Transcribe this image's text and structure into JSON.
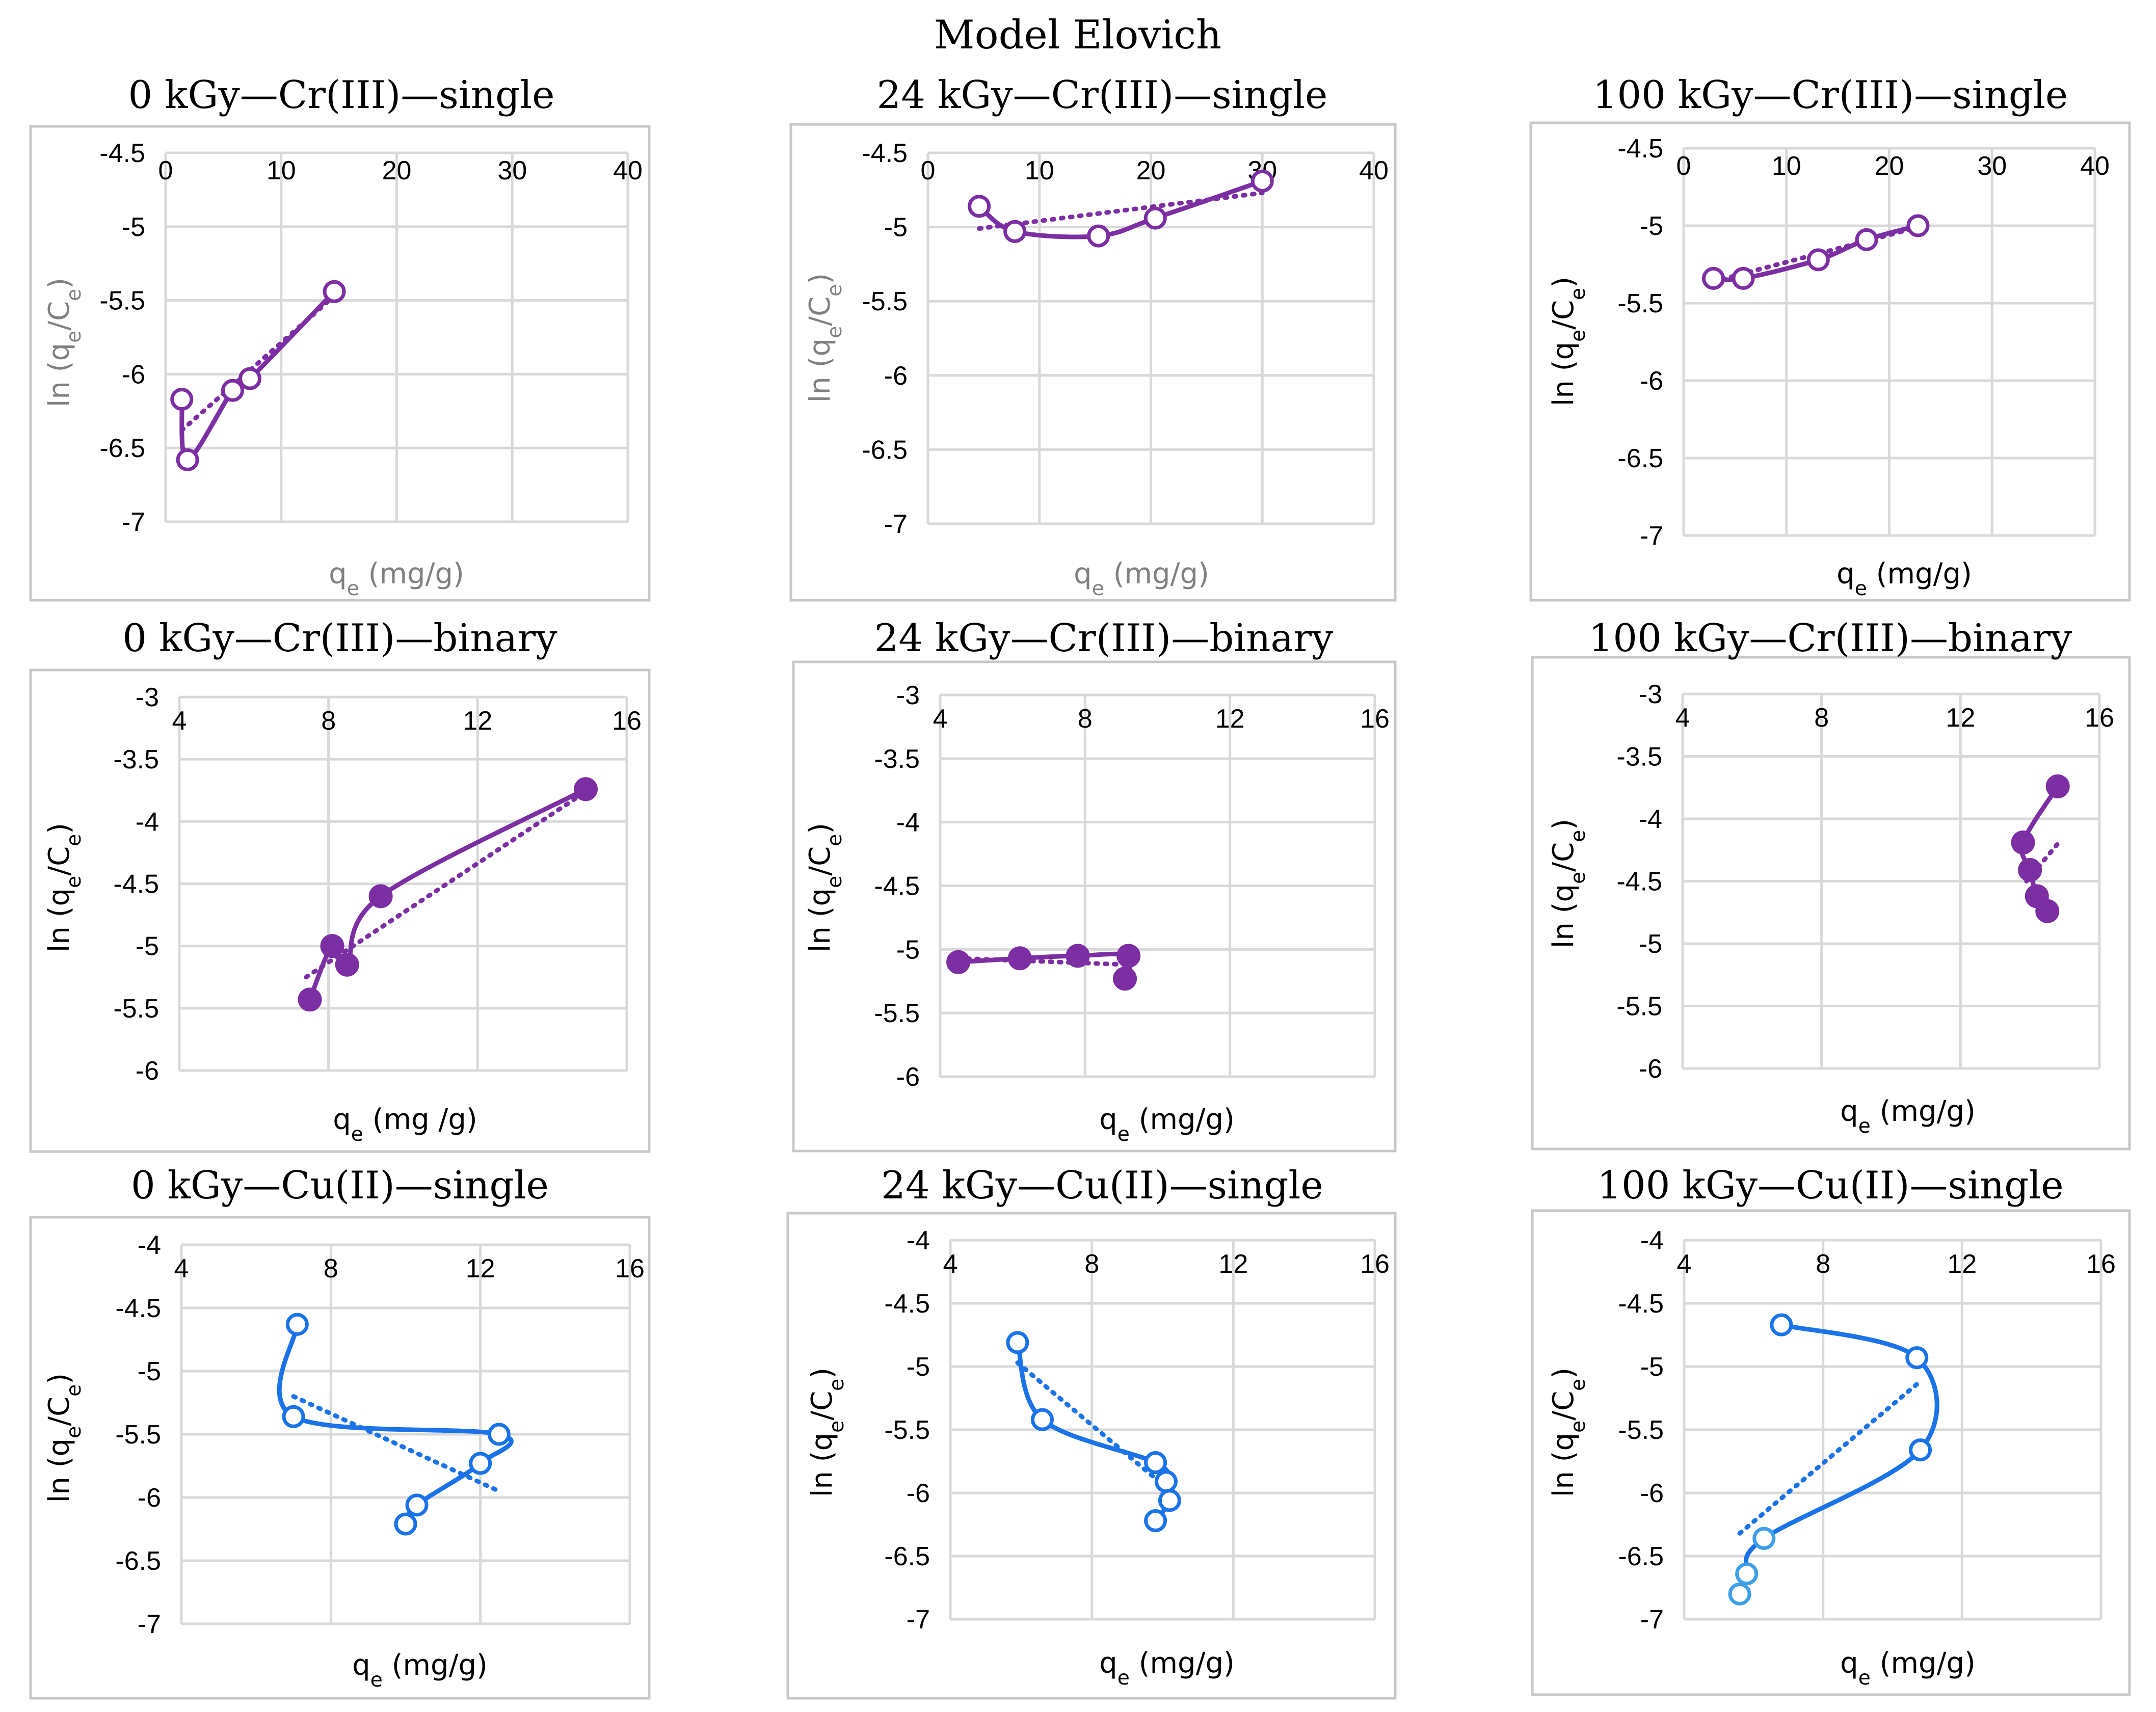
{
  "figure_title": "Model Elovich",
  "colors": {
    "purple": "#7B2FA3",
    "blue": "#1A73E8",
    "light_blue": "#3D9FE8",
    "grid": "#d9d9d9",
    "frame": "#c8c8c8"
  },
  "chart_data": [
    {
      "type": "scatter",
      "title": "0 kGy—Cr(III)—single",
      "xlabel": "qₑ (mg/g)",
      "ylabel": "ln (qₑ/Cₑ)",
      "label_color": "gray",
      "xlim": [
        0,
        40
      ],
      "ylim": [
        -7,
        -4.5
      ],
      "xticks": [
        "0",
        "10",
        "20",
        "30",
        "40"
      ],
      "yticks": [
        "-4.5",
        "-5",
        "-5.5",
        "-6",
        "-6.5",
        "-7"
      ],
      "marker": "open",
      "series_color": "purple",
      "x": [
        1.4,
        1.9,
        5.8,
        7.3,
        14.6
      ],
      "y": [
        -6.17,
        -6.58,
        -6.11,
        -6.03,
        -5.44
      ],
      "trend": [
        [
          1.4,
          -6.38
        ],
        [
          14.6,
          -5.47
        ]
      ]
    },
    {
      "type": "scatter",
      "title": "24 kGy—Cr(III)—single",
      "xlabel": "qₑ (mg/g)",
      "ylabel": "ln (qₑ/Cₑ)",
      "label_color": "gray",
      "xlim": [
        0,
        40
      ],
      "ylim": [
        -7,
        -4.5
      ],
      "xticks": [
        "0",
        "10",
        "20",
        "30",
        "40"
      ],
      "yticks": [
        "-4.5",
        "-5",
        "-5.5",
        "-6",
        "-6.5",
        "-7"
      ],
      "marker": "open",
      "series_color": "purple",
      "x": [
        4.6,
        7.8,
        15.3,
        20.4,
        30.0
      ],
      "y": [
        -4.86,
        -5.03,
        -5.06,
        -4.94,
        -4.69
      ],
      "trend": [
        [
          4.6,
          -5.01
        ],
        [
          30.0,
          -4.77
        ]
      ]
    },
    {
      "type": "scatter",
      "title": "100 kGy—Cr(III)—single",
      "xlabel": "qₑ (mg/g)",
      "ylabel": "ln (qₑ/Cₑ)",
      "label_color": "black",
      "xlim": [
        0,
        40
      ],
      "ylim": [
        -7,
        -4.5
      ],
      "xticks": [
        "0",
        "10",
        "20",
        "30",
        "40"
      ],
      "yticks": [
        "-4.5",
        "-5",
        "-5.5",
        "-6",
        "-6.5",
        "-7"
      ],
      "marker": "open",
      "series_color": "purple",
      "x": [
        2.9,
        5.8,
        13.1,
        17.8,
        22.8
      ],
      "y": [
        -5.34,
        -5.34,
        -5.22,
        -5.09,
        -5.0
      ],
      "trend": [
        [
          2.9,
          -5.36
        ],
        [
          22.8,
          -5.01
        ]
      ]
    },
    {
      "type": "scatter",
      "title": "0 kGy—Cr(III)—binary",
      "xlabel": "qₑ (mg /g)",
      "ylabel": "ln (qₑ/Cₑ)",
      "label_color": "black",
      "xlim": [
        4,
        16
      ],
      "ylim": [
        -6,
        -3
      ],
      "xticks": [
        "4",
        "8",
        "12",
        "16"
      ],
      "yticks": [
        "-3",
        "-3.5",
        "-4",
        "-4.5",
        "-5",
        "-5.5",
        "-6"
      ],
      "marker": "filled",
      "series_color": "purple",
      "x": [
        7.5,
        8.1,
        8.5,
        9.4,
        14.9
      ],
      "y": [
        -5.43,
        -5.0,
        -5.15,
        -4.6,
        -3.74
      ],
      "trend": [
        [
          7.4,
          -5.25
        ],
        [
          14.8,
          -3.78
        ]
      ]
    },
    {
      "type": "scatter",
      "title": "24 kGy—Cr(III)—binary",
      "xlabel": "qₑ (mg/g)",
      "ylabel": "ln (qₑ/Cₑ)",
      "label_color": "black",
      "xlim": [
        4,
        16
      ],
      "ylim": [
        -6,
        -3
      ],
      "xticks": [
        "4",
        "8",
        "12",
        "16"
      ],
      "yticks": [
        "-3",
        "-3.5",
        "-4",
        "-4.5",
        "-5",
        "-5.5",
        "-6"
      ],
      "marker": "filled",
      "series_color": "purple",
      "x": [
        4.5,
        6.2,
        7.8,
        9.2,
        9.1
      ],
      "y": [
        -5.1,
        -5.07,
        -5.05,
        -5.05,
        -5.23
      ],
      "trend": [
        [
          4.5,
          -5.07
        ],
        [
          9.2,
          -5.12
        ]
      ]
    },
    {
      "type": "scatter",
      "title": "100 kGy—Cr(III)—binary",
      "xlabel": "qₑ (mg/g)",
      "ylabel": "ln (qₑ/Cₑ)",
      "label_color": "black",
      "xlim": [
        4,
        16
      ],
      "ylim": [
        -6,
        -3
      ],
      "xticks": [
        "4",
        "8",
        "12",
        "16"
      ],
      "yticks": [
        "-3",
        "-3.5",
        "-4",
        "-4.5",
        "-5",
        "-5.5",
        "-6"
      ],
      "marker": "filled",
      "series_color": "purple",
      "x": [
        14.5,
        14.2,
        14.0,
        13.8,
        14.8
      ],
      "y": [
        -4.74,
        -4.62,
        -4.41,
        -4.19,
        -3.74
      ],
      "trend": [
        [
          13.9,
          -4.5
        ],
        [
          14.8,
          -4.2
        ]
      ]
    },
    {
      "type": "scatter",
      "title": "0 kGy—Cu(II)—single",
      "xlabel": "qₑ (mg/g)",
      "ylabel": "ln (qₑ/Cₑ)",
      "label_color": "black",
      "xlim": [
        4,
        16
      ],
      "ylim": [
        -7,
        -4
      ],
      "xticks": [
        "4",
        "8",
        "12",
        "16"
      ],
      "yticks": [
        "-4",
        "-4.5",
        "-5",
        "-5.5",
        "-6",
        "-6.5",
        "-7"
      ],
      "marker": "open",
      "series_color": "blue",
      "x": [
        7.1,
        7.0,
        12.5,
        12.0,
        10.3,
        10.0
      ],
      "y": [
        -4.63,
        -5.36,
        -5.5,
        -5.73,
        -6.06,
        -6.21
      ],
      "trend": [
        [
          7.0,
          -5.2
        ],
        [
          12.5,
          -5.95
        ]
      ]
    },
    {
      "type": "scatter",
      "title": "24 kGy—Cu(II)—single",
      "xlabel": "qₑ (mg/g)",
      "ylabel": "ln (qₑ/Cₑ)",
      "label_color": "black",
      "xlim": [
        4,
        16
      ],
      "ylim": [
        -7,
        -4
      ],
      "xticks": [
        "4",
        "8",
        "12",
        "16"
      ],
      "yticks": [
        "-4",
        "-4.5",
        "-5",
        "-5.5",
        "-6",
        "-6.5",
        "-7"
      ],
      "marker": "open",
      "series_color": "blue",
      "x": [
        5.9,
        6.6,
        9.8,
        10.1,
        10.2,
        9.8
      ],
      "y": [
        -4.81,
        -5.42,
        -5.76,
        -5.91,
        -6.06,
        -6.22
      ],
      "trend": [
        [
          5.9,
          -4.97
        ],
        [
          10.2,
          -5.98
        ]
      ]
    },
    {
      "type": "scatter",
      "title": "100 kGy—Cu(II)—single",
      "xlabel": "qₑ (mg/g)",
      "ylabel": "ln (qₑ/Cₑ)",
      "label_color": "black",
      "xlim": [
        4,
        16
      ],
      "ylim": [
        -7,
        -4
      ],
      "xticks": [
        "4",
        "8",
        "12",
        "16"
      ],
      "yticks": [
        "-4",
        "-4.5",
        "-5",
        "-5.5",
        "-6",
        "-6.5",
        "-7"
      ],
      "marker": "open",
      "series_color": "blue",
      "x": [
        6.8,
        10.7,
        10.8,
        6.3,
        5.8,
        5.6
      ],
      "y": [
        -4.67,
        -4.93,
        -5.66,
        -6.36,
        -6.64,
        -6.8
      ],
      "trend": [
        [
          5.6,
          -6.32
        ],
        [
          10.7,
          -5.14
        ]
      ]
    }
  ]
}
